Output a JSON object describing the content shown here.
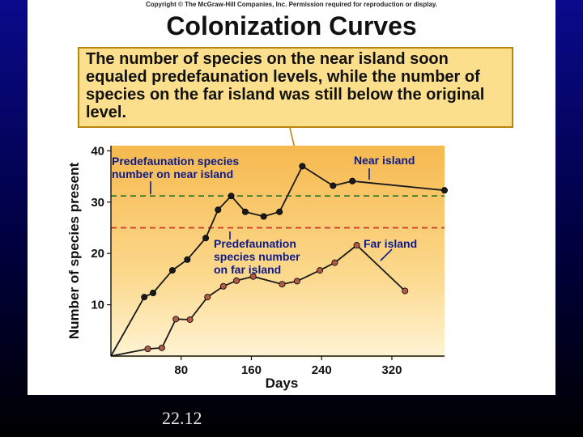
{
  "copyright": "Copyright © The McGraw-Hill Companies, Inc. Permission required for reproduction or display.",
  "title": "Colonization Curves",
  "callout": "The number of species on the near island soon equaled predefaunation levels, while the number of species on the far island was still below the original level.",
  "slide_number": "22.12",
  "chart_data": {
    "type": "line",
    "xlabel": "Days",
    "ylabel": "Number of species present",
    "xlim": [
      0,
      380
    ],
    "ylim": [
      0,
      41
    ],
    "xticks": [
      80,
      160,
      240,
      320
    ],
    "yticks": [
      10,
      20,
      30,
      40
    ],
    "series": [
      {
        "name": "Near island",
        "color": "#1a1a1a",
        "x": [
          0,
          38,
          48,
          70,
          87,
          108,
          122,
          137,
          153,
          174,
          192,
          218,
          253,
          275,
          380
        ],
        "y": [
          0,
          11.5,
          12.3,
          16.7,
          18.8,
          23,
          28.5,
          31.2,
          28.1,
          27.2,
          28.1,
          37,
          33.2,
          34.1,
          32.3
        ]
      },
      {
        "name": "Far island",
        "color": "#b05a4a",
        "x": [
          0,
          42,
          58,
          74,
          90,
          110,
          128,
          143,
          162,
          195,
          212,
          238,
          255,
          280,
          335
        ],
        "y": [
          0,
          1.4,
          1.6,
          7.2,
          7.1,
          11.5,
          13.6,
          14.7,
          15.5,
          14,
          14.6,
          16.7,
          18.2,
          21.6,
          12.7
        ]
      }
    ],
    "reference_lines": [
      {
        "y": 31.2,
        "color": "#2e7d32",
        "label": "Predefaunation species number on near island"
      },
      {
        "y": 25,
        "color": "#d32f2f",
        "label": "Predefaunation species number on far island"
      }
    ],
    "annotations": [
      {
        "text": "Near island",
        "series": 0
      },
      {
        "text": "Far island",
        "series": 1
      }
    ]
  }
}
